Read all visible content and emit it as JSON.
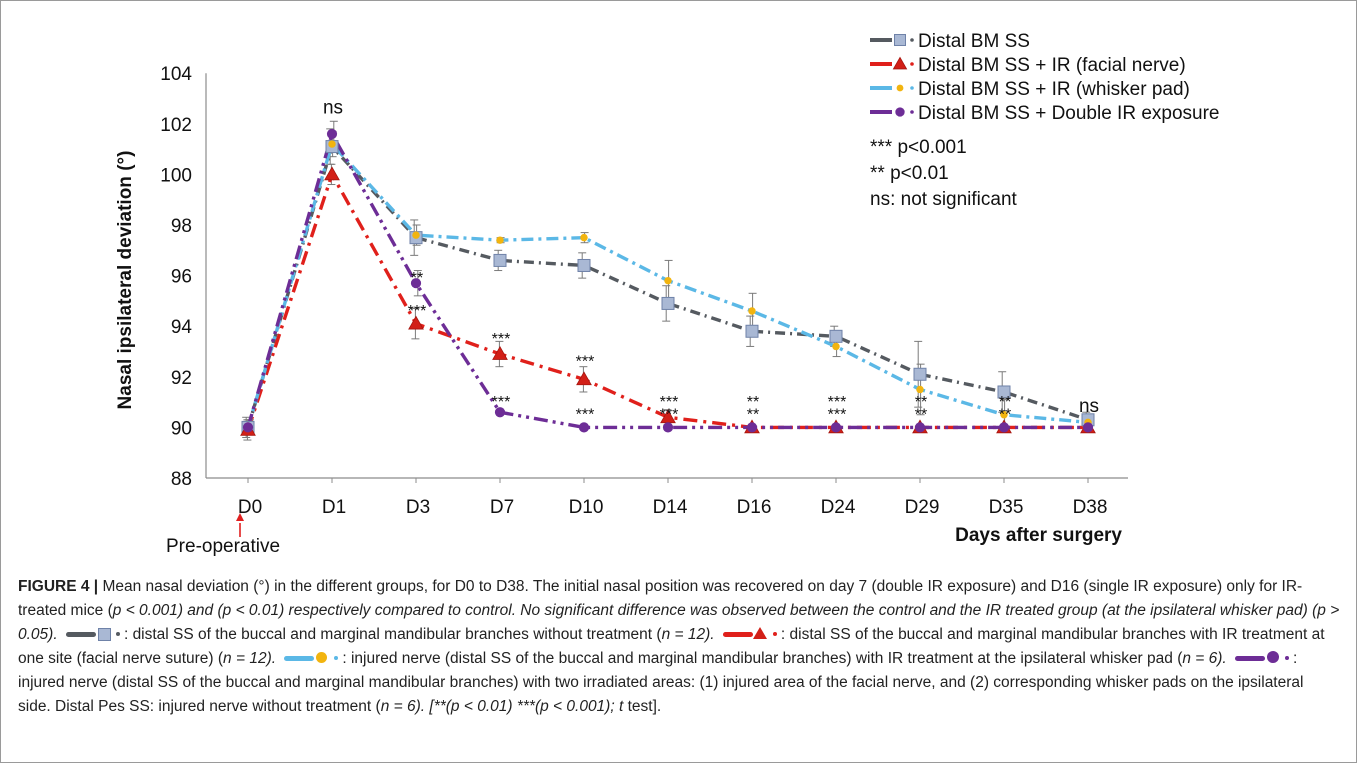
{
  "chart_data": {
    "type": "line",
    "categories": [
      "D0",
      "D1",
      "D3",
      "D7",
      "D10",
      "D14",
      "D16",
      "D24",
      "D29",
      "D35",
      "D38"
    ],
    "ylabel": "Nasal ipsilateral deviation (°)",
    "xlabel": "Days after surgery",
    "ylim": [
      88,
      104
    ],
    "yticks": [
      88,
      90,
      92,
      94,
      96,
      98,
      100,
      102,
      104
    ],
    "grid": false,
    "legend_position": "top-right",
    "series": [
      {
        "name": "Distal BM SS",
        "color": "#555a60",
        "marker": "square",
        "marker_fill": "#a9b8d4",
        "values": [
          90,
          101.1,
          97.5,
          96.6,
          96.4,
          94.9,
          93.8,
          93.6,
          92.1,
          91.4,
          90.3
        ],
        "errors": [
          0.4,
          0.7,
          0.7,
          0.4,
          0.5,
          0.7,
          0.6,
          0.4,
          1.3,
          0.8,
          0.3
        ]
      },
      {
        "name": "Distal BM SS + IR (facial nerve)",
        "color": "#e0201b",
        "marker": "triangle",
        "marker_fill": "#d21f17",
        "values": [
          89.9,
          100.0,
          94.1,
          92.9,
          91.9,
          90.4,
          90,
          90,
          90,
          90,
          90
        ],
        "errors": [
          0.4,
          0.4,
          0.6,
          0.5,
          0.5,
          0.3,
          0,
          0,
          0,
          0,
          0
        ]
      },
      {
        "name": "Distal BM SS + IR (whisker pad)",
        "color": "#5bb8e6",
        "marker": "circle",
        "marker_fill": "#f2b40f",
        "values": [
          90,
          101.2,
          97.6,
          97.4,
          97.5,
          95.8,
          94.6,
          93.2,
          91.5,
          90.5,
          90.2
        ],
        "errors": [
          0.3,
          0.5,
          0.4,
          0.1,
          0.2,
          0.8,
          0.7,
          0.4,
          1.0,
          0.6,
          0.2
        ]
      },
      {
        "name": "Distal BM SS + Double IR exposure",
        "color": "#6d2d96",
        "marker": "circle",
        "marker_fill": "#6d2d96",
        "values": [
          90,
          101.6,
          95.7,
          90.6,
          90,
          90,
          90,
          90,
          90,
          90,
          90
        ],
        "errors": [
          0.3,
          0.5,
          0.5,
          0,
          0,
          0,
          0,
          0,
          0,
          0,
          0
        ]
      }
    ],
    "annotations": [
      {
        "category": "D1",
        "y": 102.4,
        "text": "ns",
        "style": "large"
      },
      {
        "category": "D3",
        "y": 96.1,
        "text": "**"
      },
      {
        "category": "D3",
        "y": 94.8,
        "text": "***"
      },
      {
        "category": "D7",
        "y": 93.7,
        "text": "***"
      },
      {
        "category": "D7",
        "y": 91.2,
        "text": "***"
      },
      {
        "category": "D10",
        "y": 92.8,
        "text": "***"
      },
      {
        "category": "D10",
        "y": 90.7,
        "text": "***"
      },
      {
        "category": "D14",
        "y": 91.2,
        "text": "***"
      },
      {
        "category": "D14",
        "y": 90.7,
        "text": "***"
      },
      {
        "category": "D16",
        "y": 91.2,
        "text": "**"
      },
      {
        "category": "D16",
        "y": 90.7,
        "text": "**"
      },
      {
        "category": "D24",
        "y": 91.2,
        "text": "***"
      },
      {
        "category": "D24",
        "y": 90.7,
        "text": "***"
      },
      {
        "category": "D29",
        "y": 91.2,
        "text": "**"
      },
      {
        "category": "D29",
        "y": 90.7,
        "text": "**"
      },
      {
        "category": "D35",
        "y": 91.2,
        "text": "**"
      },
      {
        "category": "D35",
        "y": 90.7,
        "text": "**"
      },
      {
        "category": "D38",
        "y": 90.6,
        "text": "ns",
        "style": "large"
      }
    ],
    "significance_notes": [
      "*** p<0.001",
      "** p<0.01",
      "ns: not significant"
    ],
    "baseline_label": "Pre-operative"
  },
  "caption": {
    "label": "FIGURE 4 |",
    "part1": " Mean nasal deviation (°) in the different groups, for D0 to D38. The initial nasal position was recovered on day 7 (double IR exposure) and D16 (single IR exposure) only for IR-treated mice (",
    "part2": "p < 0.001) and (",
    "part3": "p < 0.01) respectively compared to control. No significant difference was observed between the control and the IR treated group (at the ipsilateral whisker pad) (",
    "part4": "p > 0.05).",
    "part5": ": distal SS of the buccal and marginal mandibular branches without treatment (",
    "part6": "n = 12).",
    "part7": ": distal SS of the buccal and marginal mandibular branches with IR treatment at one site (facial nerve suture) (",
    "part8": "n = 12).",
    "part9": ": injured nerve (distal SS of the buccal and marginal mandibular branches) with IR treatment at the ipsilateral whisker pad (",
    "part10": "n = 6).",
    "part11": ": injured nerve (distal SS of the buccal and marginal mandibular branches) with two irradiated areas: (1) injured area of the facial nerve, and (2) corresponding whisker pads on the ipsilateral side. Distal Pes SS: injured nerve without treatment (",
    "part12": "n = 6). [**(",
    "part13": "p < 0.01) ***(",
    "part14": "p < 0.001); ",
    "part15": "t",
    "part16": " test]."
  }
}
